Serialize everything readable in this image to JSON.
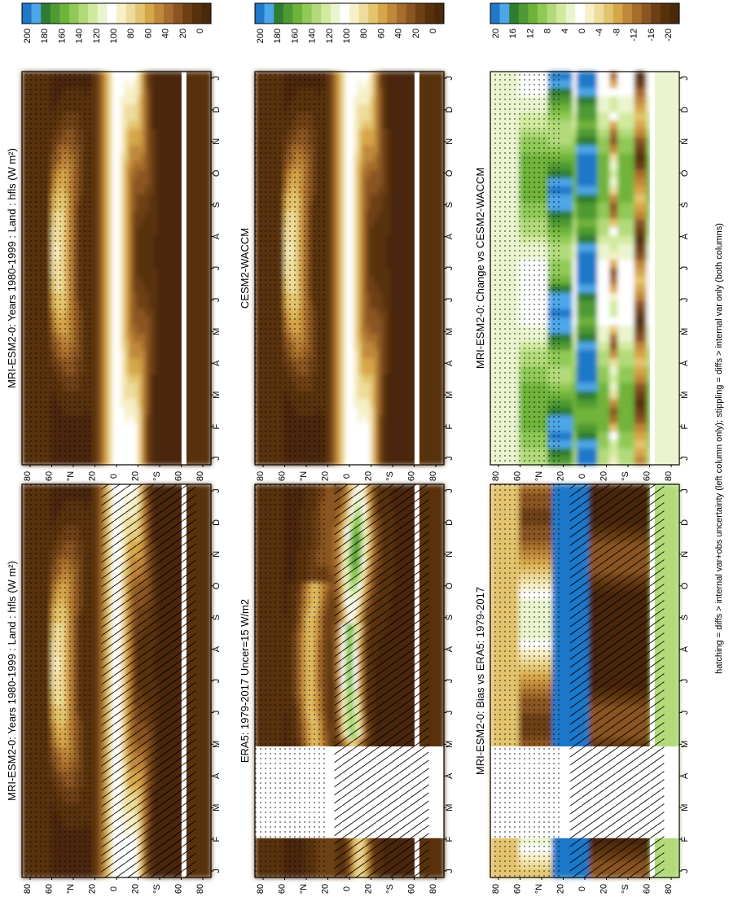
{
  "chart_data": [
    {
      "type": "heatmap",
      "title": "MRI-ESM2-0: Years 1980-1999 : Land : hfls (W m²)",
      "x_ticks": [
        "J",
        "F",
        "M",
        "A",
        "M",
        "J",
        "J",
        "A",
        "S",
        "O",
        "N",
        "D",
        "J"
      ],
      "y_ticks": [
        "80",
        "60",
        "°N",
        "20",
        "0",
        "20",
        "°S",
        "60",
        "80"
      ],
      "colorbar_ticks": [
        "200",
        "180",
        "160",
        "140",
        "120",
        "100",
        "80",
        "60",
        "40",
        "20",
        "0"
      ],
      "colorbar_range": [
        0,
        220
      ],
      "colorbar_colors": [
        "#1f78c8",
        "#4da6e8",
        "#2e7d32",
        "#4f9a33",
        "#6fb43a",
        "#90c956",
        "#b2da7a",
        "#d2ea9f",
        "#eaf5cf",
        "#ffffff",
        "#f7efc8",
        "#eedc9c",
        "#e3c46e",
        "#d6a64a",
        "#c0883a",
        "#a66d2c",
        "#8a5520",
        "#6d3f14",
        "#58300c",
        "#4a280a"
      ],
      "hatching": "diffs > internal var+obs uncertainty",
      "stippling": "diffs > internal var only"
    },
    {
      "type": "heatmap",
      "title": "MRI-ESM2-0: Years 1980-1999 : Land : hfls (W m²)",
      "x_ticks": [
        "J",
        "F",
        "M",
        "A",
        "M",
        "J",
        "J",
        "A",
        "S",
        "O",
        "N",
        "D",
        "J"
      ],
      "y_ticks": [
        "80",
        "60",
        "°N",
        "20",
        "0",
        "20",
        "°S",
        "60",
        "80"
      ],
      "colorbar_ticks": [
        "200",
        "180",
        "160",
        "140",
        "120",
        "100",
        "80",
        "60",
        "40",
        "20",
        "0"
      ],
      "colorbar_range": [
        0,
        220
      ]
    },
    {
      "type": "heatmap",
      "title": "ERA5: 1979-2017 Uncer=15 W/m2",
      "x_ticks": [
        "J",
        "F",
        "M",
        "A",
        "M",
        "J",
        "J",
        "A",
        "S",
        "O",
        "N",
        "D",
        "J"
      ],
      "y_ticks": [
        "80",
        "60",
        "°N",
        "20",
        "0",
        "20",
        "°S",
        "60",
        "80"
      ],
      "colorbar_ticks": [
        "200",
        "180",
        "160",
        "140",
        "120",
        "100",
        "80",
        "60",
        "40",
        "20",
        "0"
      ],
      "colorbar_range": [
        0,
        220
      ],
      "missing_months": [
        "F",
        "M",
        "A"
      ]
    },
    {
      "type": "heatmap",
      "title": "CESM2-WACCM",
      "x_ticks": [
        "J",
        "F",
        "M",
        "A",
        "M",
        "J",
        "J",
        "A",
        "S",
        "O",
        "N",
        "D",
        "J"
      ],
      "y_ticks": [
        "80",
        "60",
        "°N",
        "20",
        "0",
        "20",
        "°S",
        "60",
        "80"
      ],
      "colorbar_ticks": [
        "200",
        "180",
        "160",
        "140",
        "120",
        "100",
        "80",
        "60",
        "40",
        "20",
        "0"
      ],
      "colorbar_range": [
        0,
        220
      ]
    },
    {
      "type": "heatmap",
      "title": "MRI-ESM2-0: Bias vs ERA5: 1979-2017",
      "x_ticks": [
        "J",
        "F",
        "M",
        "A",
        "M",
        "J",
        "J",
        "A",
        "S",
        "O",
        "N",
        "D",
        "J"
      ],
      "y_ticks": [
        "80",
        "60",
        "°N",
        "20",
        "0",
        "20",
        "°S",
        "60",
        "80"
      ],
      "colorbar_ticks": [
        "20",
        "16",
        "12",
        "8",
        "4",
        "0",
        "-4",
        "-8",
        "-12",
        "-16",
        "-20"
      ],
      "colorbar_range": [
        -22,
        22
      ],
      "colorbar_colors": [
        "#1f78c8",
        "#4da6e8",
        "#2e7d32",
        "#4f9a33",
        "#6fb43a",
        "#90c956",
        "#b2da7a",
        "#d2ea9f",
        "#eaf5cf",
        "#ffffff",
        "#f7efc8",
        "#eedc9c",
        "#e3c46e",
        "#d6a64a",
        "#c0883a",
        "#a66d2c",
        "#8a5520",
        "#6d3f14",
        "#58300c",
        "#4a280a"
      ],
      "missing_months": [
        "F",
        "M",
        "A"
      ]
    },
    {
      "type": "heatmap",
      "title": "MRI-ESM2-0: Change vs CESM2-WACCM",
      "x_ticks": [
        "J",
        "F",
        "M",
        "A",
        "M",
        "J",
        "J",
        "A",
        "S",
        "O",
        "N",
        "D",
        "J"
      ],
      "y_ticks": [
        "80",
        "60",
        "°N",
        "20",
        "0",
        "20",
        "°S",
        "60",
        "80"
      ],
      "colorbar_ticks": [
        "20",
        "16",
        "12",
        "8",
        "4",
        "0",
        "-4",
        "-8",
        "-12",
        "-16",
        "-20"
      ],
      "colorbar_range": [
        -22,
        22
      ]
    }
  ],
  "footnote": "hatching = diffs > internal var+obs uncertainty (left column only); stippling = diffs > internal var only (both columns)"
}
